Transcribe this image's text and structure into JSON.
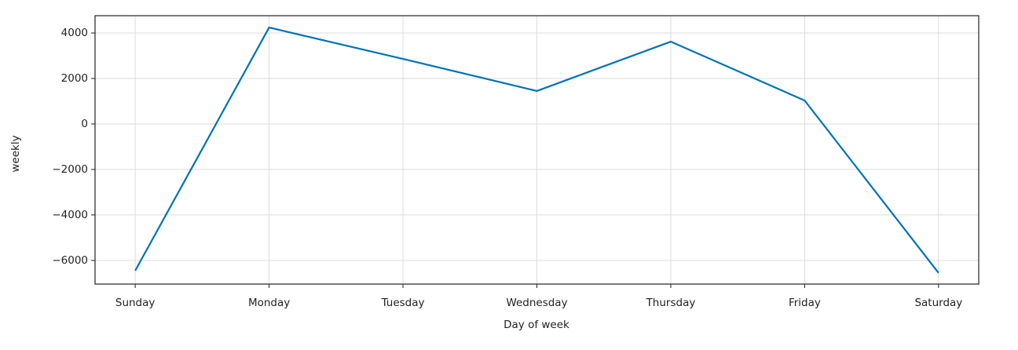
{
  "chart_data": {
    "type": "line",
    "xlabel": "Day of week",
    "ylabel": "weekly",
    "categories": [
      "Sunday",
      "Monday",
      "Tuesday",
      "Wednesday",
      "Thursday",
      "Friday",
      "Saturday"
    ],
    "series": [
      {
        "name": "weekly",
        "color": "#0072B2",
        "values": [
          -6450,
          4240,
          2860,
          1450,
          3620,
          1030,
          -6550
        ]
      }
    ],
    "ylim": [
      -7040,
      4760
    ],
    "yticks": [
      {
        "value": -6000,
        "label": "−6000"
      },
      {
        "value": -4000,
        "label": "−4000"
      },
      {
        "value": -2000,
        "label": "−2000"
      },
      0,
      2000,
      4000
    ],
    "grid": true
  }
}
